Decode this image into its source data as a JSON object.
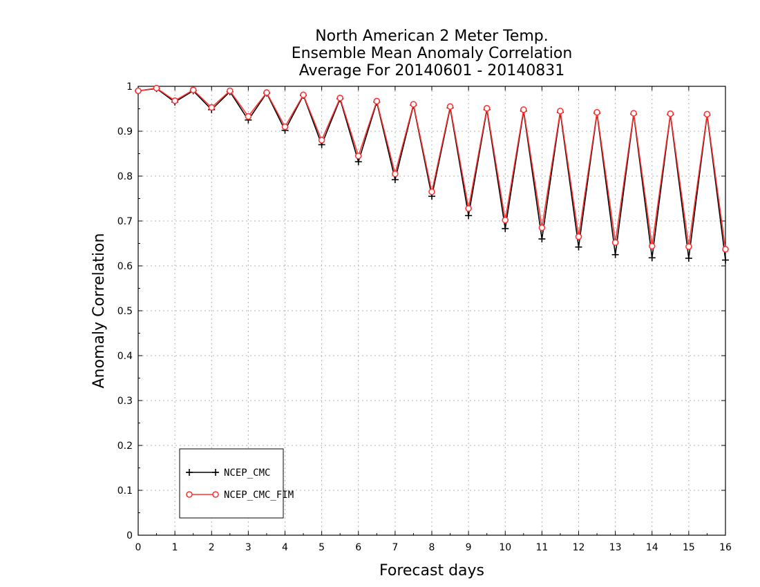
{
  "chart_data": {
    "type": "line",
    "title_lines": [
      "North American 2 Meter Temp.",
      "Ensemble Mean Anomaly Correlation",
      "Average For 20140601 - 20140831"
    ],
    "xlabel": "Forecast days",
    "ylabel": "Anomaly Correlation",
    "xlim": [
      0,
      16
    ],
    "ylim": [
      0,
      1
    ],
    "x_ticks": [
      "0",
      "1",
      "2",
      "3",
      "4",
      "5",
      "6",
      "7",
      "8",
      "9",
      "10",
      "11",
      "12",
      "13",
      "14",
      "15",
      "16"
    ],
    "y_ticks": [
      "0",
      "0.1",
      "0.2",
      "0.3",
      "0.4",
      "0.5",
      "0.6",
      "0.7",
      "0.8",
      "0.9",
      "1"
    ],
    "grid": true,
    "legend_position": "bottom-left",
    "x": [
      0,
      0.5,
      1,
      1.5,
      2,
      2.5,
      3,
      3.5,
      4,
      4.5,
      5,
      5.5,
      6,
      6.5,
      7,
      7.5,
      8,
      8.5,
      9,
      9.5,
      10,
      10.5,
      11,
      11.5,
      12,
      12.5,
      13,
      13.5,
      14,
      14.5,
      15,
      15.5,
      16
    ],
    "series": [
      {
        "name": "NCEP_CMC",
        "color": "#000000",
        "marker": "plus",
        "values": [
          0.99,
          0.995,
          0.965,
          0.99,
          0.948,
          0.988,
          0.925,
          0.985,
          0.902,
          0.98,
          0.87,
          0.972,
          0.832,
          0.965,
          0.792,
          0.958,
          0.755,
          0.952,
          0.712,
          0.948,
          0.683,
          0.945,
          0.66,
          0.942,
          0.642,
          0.94,
          0.625,
          0.938,
          0.618,
          0.937,
          0.617,
          0.936,
          0.613
        ]
      },
      {
        "name": "NCEP_CMC_FIM",
        "color": "#ff3333",
        "marker": "circle",
        "values": [
          0.99,
          0.996,
          0.968,
          0.992,
          0.953,
          0.99,
          0.933,
          0.986,
          0.91,
          0.981,
          0.88,
          0.974,
          0.845,
          0.967,
          0.805,
          0.96,
          0.765,
          0.955,
          0.728,
          0.951,
          0.702,
          0.948,
          0.685,
          0.945,
          0.665,
          0.942,
          0.652,
          0.94,
          0.644,
          0.939,
          0.643,
          0.938,
          0.637
        ]
      }
    ]
  }
}
